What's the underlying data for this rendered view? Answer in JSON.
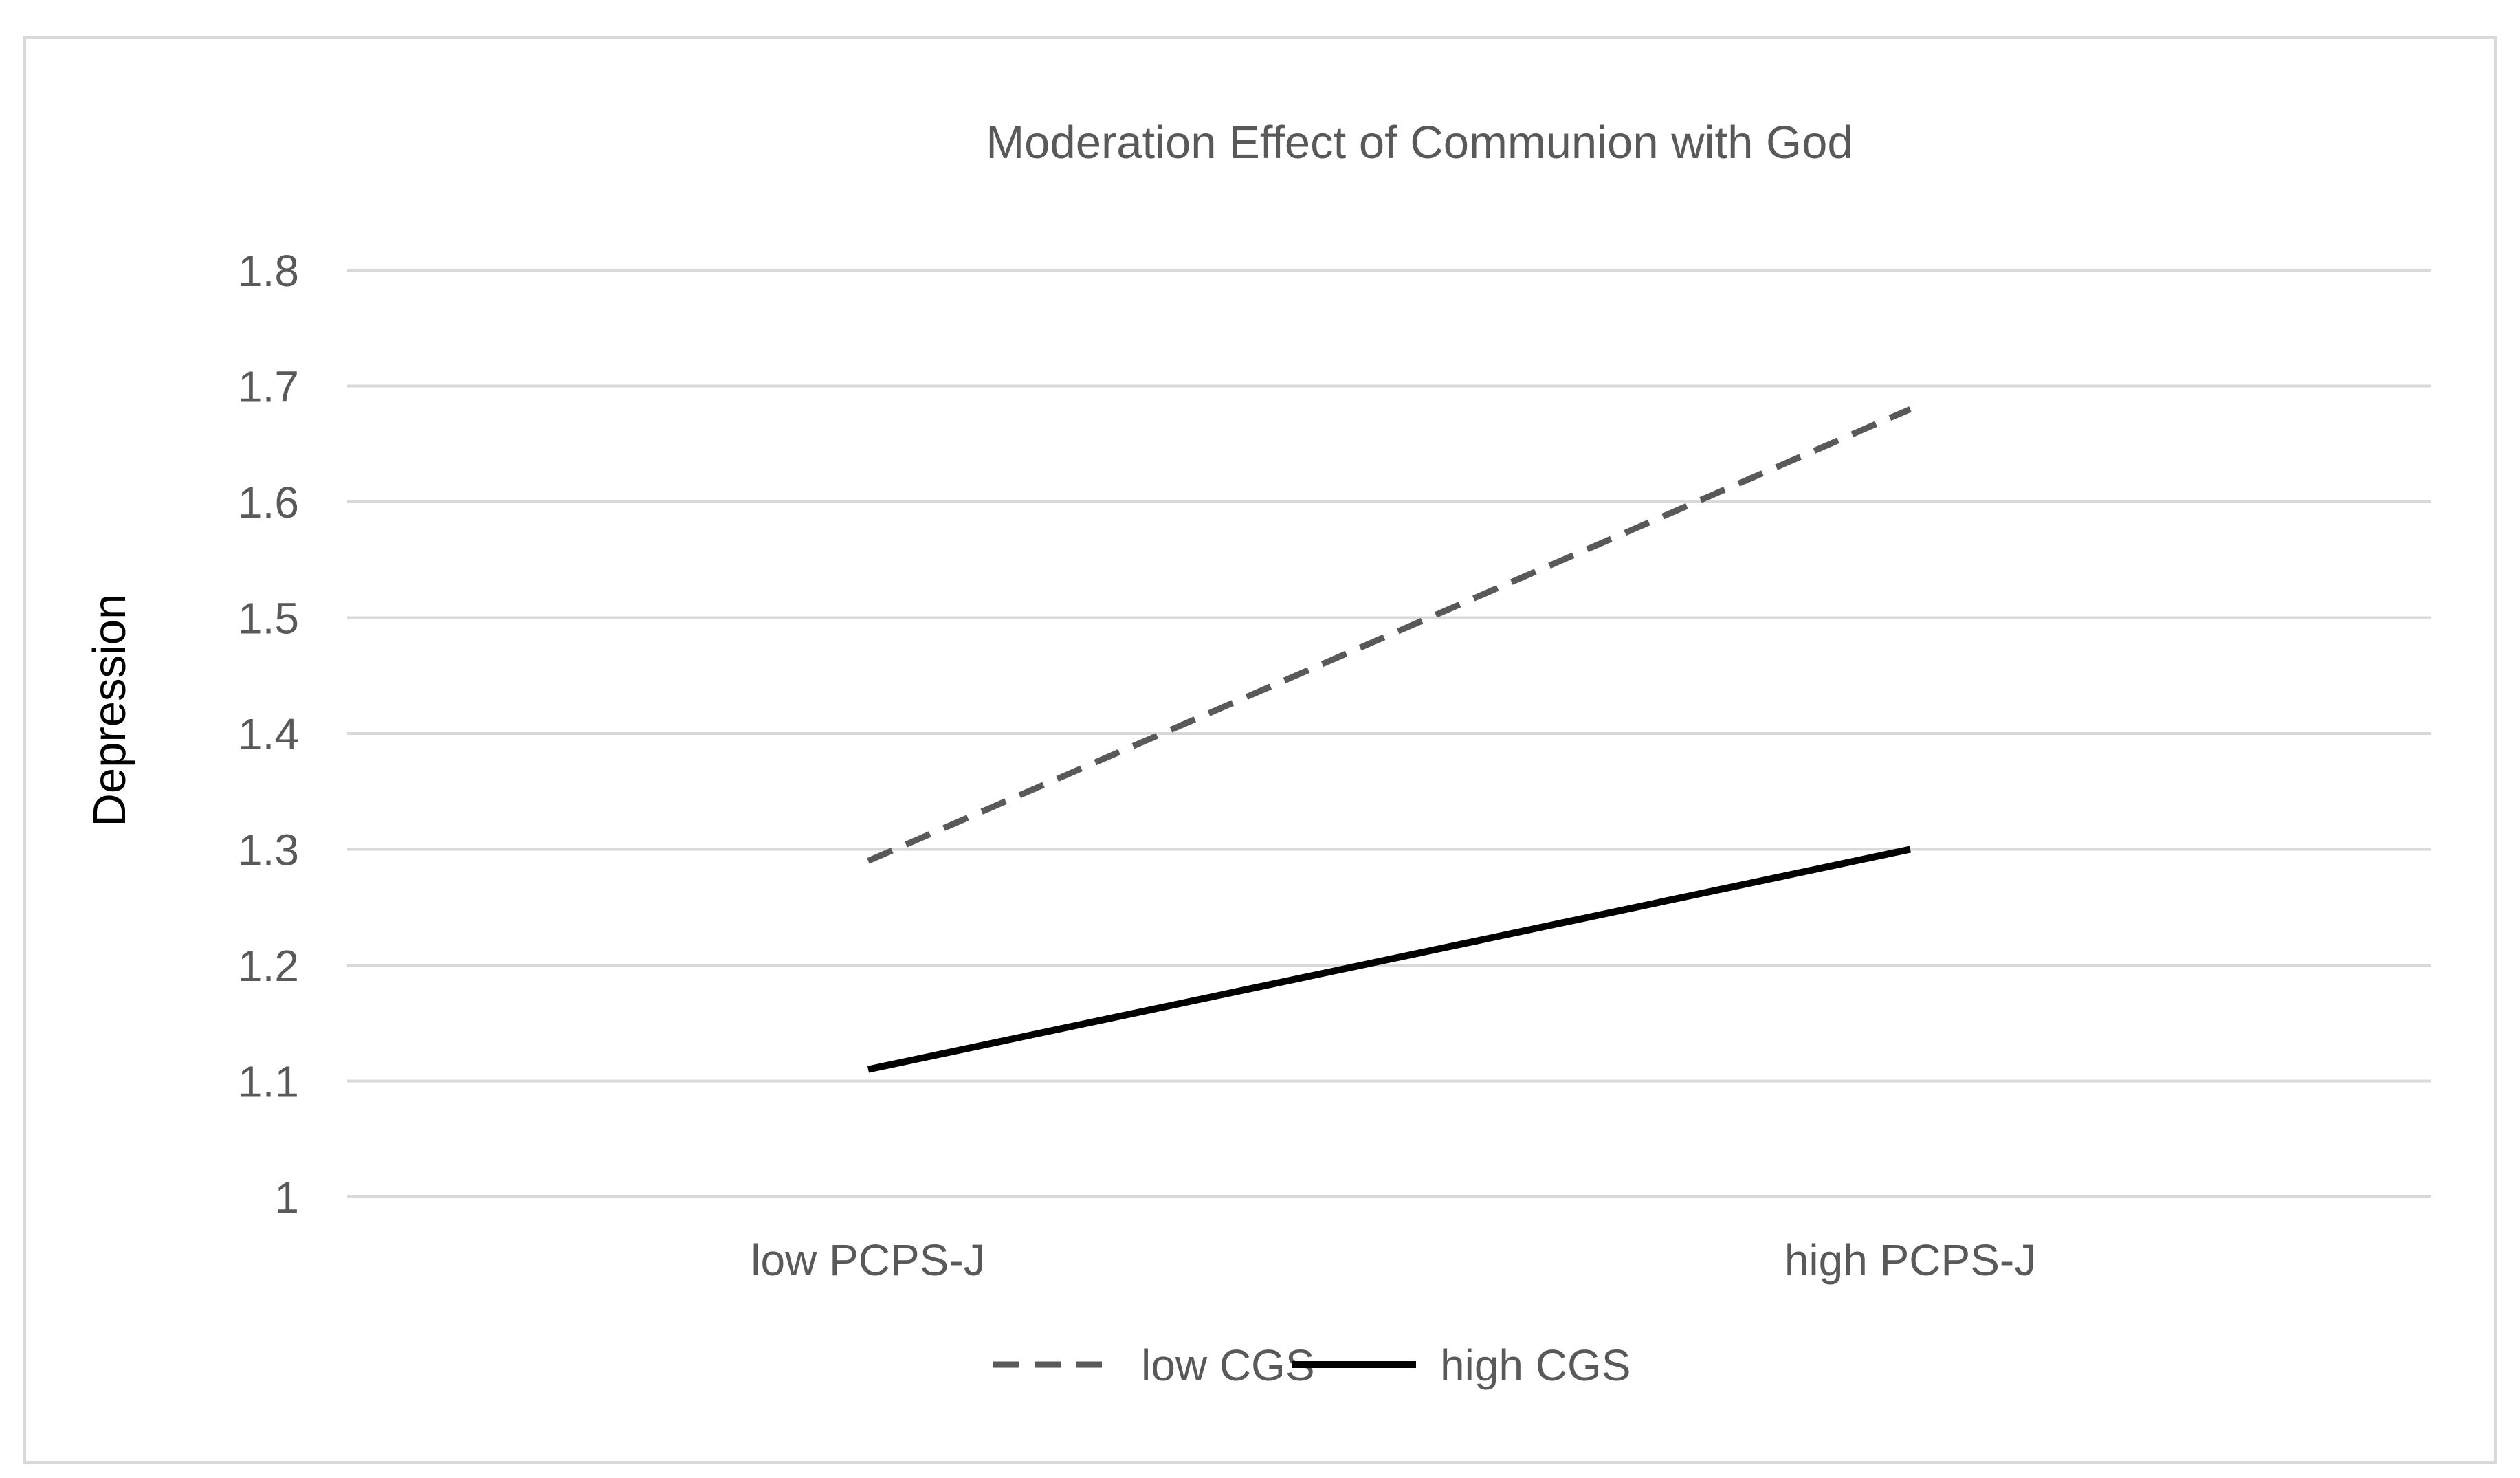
{
  "chart_data": {
    "type": "line",
    "title": "Moderation Effect of Communion with God",
    "xlabel": "",
    "ylabel": "Depression",
    "categories": [
      "low PCPS-J",
      "high PCPS-J"
    ],
    "yticks": [
      "1",
      "1.1",
      "1.2",
      "1.3",
      "1.4",
      "1.5",
      "1.6",
      "1.7",
      "1.8"
    ],
    "ylim": [
      1,
      1.8
    ],
    "grid": true,
    "legend_position": "bottom",
    "series": [
      {
        "name": "low CGS",
        "style": "dashed",
        "color": "#595959",
        "values": [
          1.29,
          1.68
        ]
      },
      {
        "name": "high CGS",
        "style": "solid",
        "color": "#000000",
        "values": [
          1.11,
          1.3
        ]
      }
    ],
    "colors": {
      "grid": "#d9d9d9",
      "text": "#595959",
      "axis_title": "#000000"
    }
  }
}
